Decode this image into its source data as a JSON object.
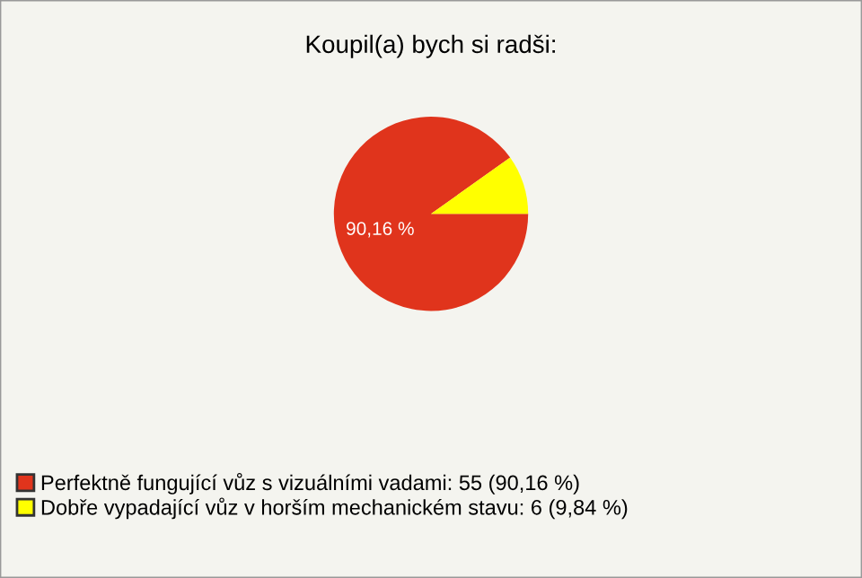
{
  "chart_data": {
    "type": "pie",
    "title": "Koupil(a) bych si radši:",
    "categories": [
      "Perfektně fungující vůz s vizuálními vadami: 55 (90,16 %)",
      "Dobře vypadající vůz v horším mechanickém stavu: 6 (9,84 %)"
    ],
    "values": [
      90.16,
      9.84
    ],
    "colors": [
      "#e0341c",
      "#ffff00"
    ],
    "value_labels": [
      "90,16 %",
      null
    ],
    "legend": "bottom left"
  }
}
